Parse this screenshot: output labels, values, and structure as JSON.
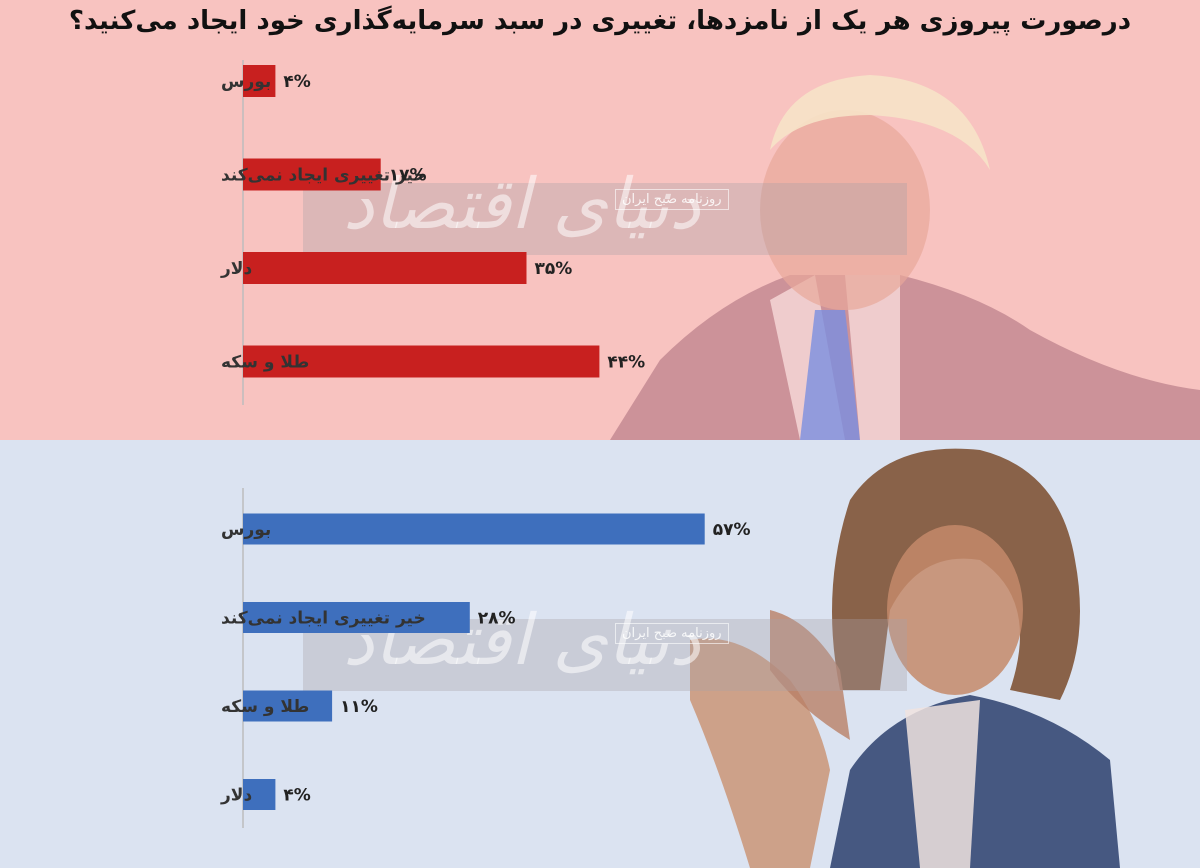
{
  "title": "درصورت پیروزی هر یک از نامزدها، تغییری در سبد سرمایه‌گذاری خود ایجاد می‌کنید؟",
  "watermark": {
    "text": "دنیای اقتصاد",
    "subtitle": "روزنامه صبح ایران"
  },
  "colors": {
    "top_bg": "#f8c3c0",
    "bottom_bg": "#dbe3f1",
    "top_bar": "#c8201f",
    "bottom_bar": "#3e6fbd"
  },
  "chart_data": [
    {
      "type": "bar",
      "orientation": "horizontal",
      "categories": [
        "بورس",
        "خیر تغییری ایجاد نمی‌کند",
        "دلار",
        "طلا و سکه"
      ],
      "values": [
        4,
        17,
        35,
        44
      ],
      "value_labels": [
        "۴%",
        "۱۷%",
        "۳۵%",
        "۴۴%"
      ],
      "xlim": [
        0,
        60
      ],
      "grid": false
    },
    {
      "type": "bar",
      "orientation": "horizontal",
      "categories": [
        "بورس",
        "خیر تغییری ایجاد نمی‌کند",
        "طلا و سکه",
        "دلار"
      ],
      "values": [
        57,
        28,
        11,
        4
      ],
      "value_labels": [
        "۵۷%",
        "۲۸%",
        "۱۱%",
        "۴%"
      ],
      "xlim": [
        0,
        60
      ],
      "grid": false
    }
  ]
}
